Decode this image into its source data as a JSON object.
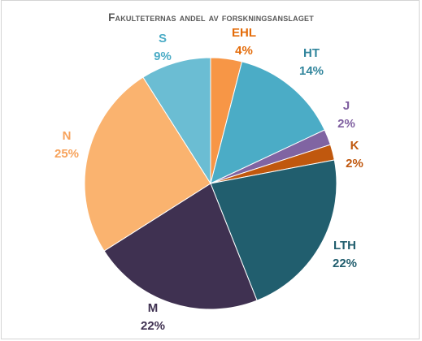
{
  "chart_data": {
    "type": "pie",
    "title": "Fakulteternas andel av forskningsanslaget",
    "slices": [
      {
        "label": "EHL",
        "pct_label": "4%",
        "value": 4,
        "color": "#f79646"
      },
      {
        "label": "HT",
        "pct_label": "14%",
        "value": 14,
        "color": "#4bacc6"
      },
      {
        "label": "J",
        "pct_label": "2%",
        "value": 2,
        "color": "#8064a2"
      },
      {
        "label": "K",
        "pct_label": "2%",
        "value": 2,
        "color": "#c0580e"
      },
      {
        "label": "LTH",
        "pct_label": "22%",
        "value": 22,
        "color": "#215e6e"
      },
      {
        "label": "M",
        "pct_label": "22%",
        "value": 22,
        "color": "#3f3151"
      },
      {
        "label": "N",
        "pct_label": "25%",
        "value": 25,
        "color": "#fab36f"
      },
      {
        "label": "S",
        "pct_label": "9%",
        "value": 9,
        "color": "#6bbdd3"
      }
    ],
    "label_colors": {
      "EHL": "#e46c0a",
      "HT": "#31859c",
      "J": "#7f5fa0",
      "K": "#c0580e",
      "LTH": "#215e6e",
      "M": "#3f3151",
      "N": "#f7a35c",
      "S": "#4bacc6"
    },
    "legend": "none"
  }
}
